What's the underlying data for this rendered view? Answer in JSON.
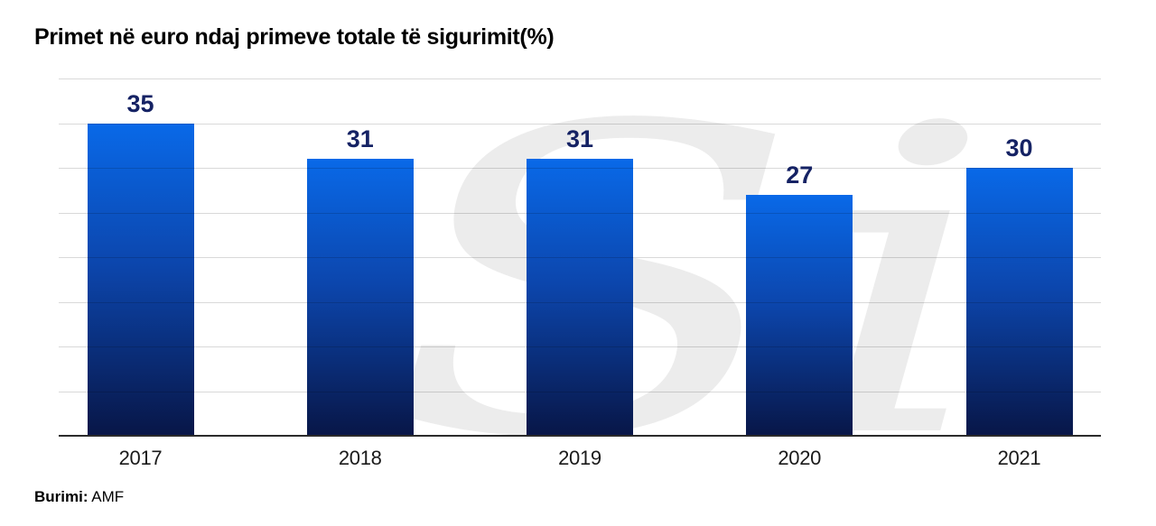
{
  "title": "Primet në euro ndaj primeve totale të sigurimit(%)",
  "source": {
    "label": "Burimi:",
    "value": "AMF"
  },
  "watermark": {
    "text": "Si"
  },
  "colors": {
    "bar_top": "#0969e8",
    "bar_mid": "#0c46ad",
    "bar_bottom": "#081647",
    "value_label": "#152264",
    "gridline": "rgba(0,0,0,0.15)",
    "axis": "#2b2b2b",
    "watermark": "#ececec",
    "title": "#000000"
  },
  "chart_data": {
    "type": "bar",
    "categories": [
      "2017",
      "2018",
      "2019",
      "2020",
      "2021"
    ],
    "values": [
      35,
      31,
      31,
      27,
      30
    ],
    "title": "Primet në euro ndaj primeve totale të sigurimit(%)",
    "xlabel": "",
    "ylabel": "",
    "ylim": [
      0,
      40
    ],
    "grid_step": 5,
    "grid": true,
    "legend": false,
    "data_labels": true,
    "y_tick_labels_visible": false
  }
}
